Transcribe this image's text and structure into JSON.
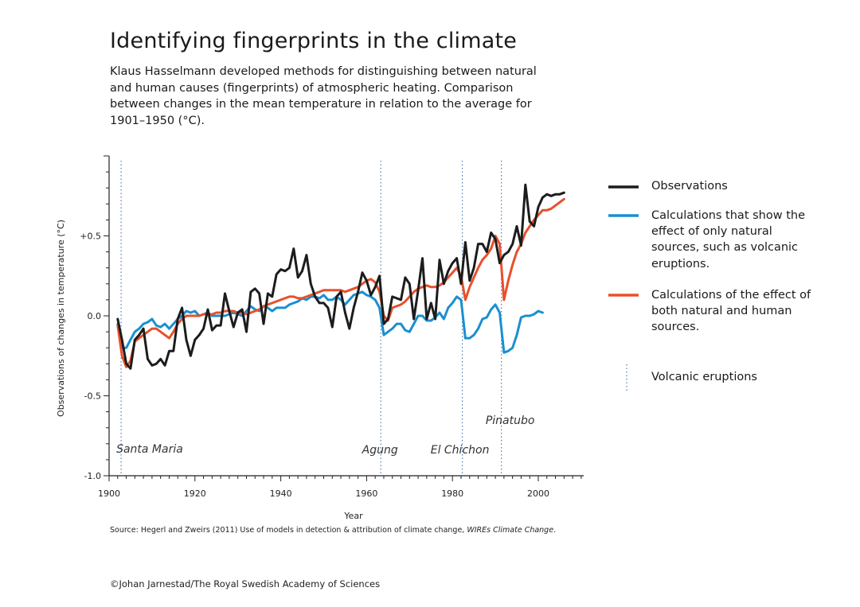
{
  "title": "Identifying fingerprints in the climate",
  "subtitle": "Klaus Hasselmann developed methods for distinguishing between natural and human causes (fingerprints) of atmospheric heating. Comparison between changes in the mean temperature in relation to the average for 1901–1950 (°C).",
  "source": {
    "prefix": "Source: Hegerl and Zweirs (2011) Use of models in detection & attribution of climate change, ",
    "journal": "WIREs Climate Change",
    "suffix": "."
  },
  "credit": "©Johan Jarnestad/The Royal Swedish Academy of Sciences",
  "colors": {
    "observations": "#1c1c1c",
    "natural": "#1a8fd1",
    "combined": "#e8502b",
    "volcano": "#4a7fb5"
  },
  "chart_data": {
    "type": "line",
    "xlabel": "Year",
    "ylabel": "Observations of changes in temperature (°C)",
    "xlim": [
      1900,
      2010
    ],
    "ylim": [
      -1.0,
      1.0
    ],
    "xticks": [
      "1900",
      "1920",
      "1940",
      "1960",
      "1980",
      "2000"
    ],
    "yticks": [
      "-1.0",
      "-0.5",
      "0.0",
      "+0.5"
    ],
    "legend_position": "right",
    "grid": false,
    "series": [
      {
        "name": "Observations",
        "key": "observations",
        "x": [
          1902,
          1903,
          1904,
          1905,
          1906,
          1907,
          1908,
          1909,
          1910,
          1911,
          1912,
          1913,
          1914,
          1915,
          1916,
          1917,
          1918,
          1919,
          1920,
          1921,
          1922,
          1923,
          1924,
          1925,
          1926,
          1927,
          1928,
          1929,
          1930,
          1931,
          1932,
          1933,
          1934,
          1935,
          1936,
          1937,
          1938,
          1939,
          1940,
          1941,
          1942,
          1943,
          1944,
          1945,
          1946,
          1947,
          1948,
          1949,
          1950,
          1951,
          1952,
          1953,
          1954,
          1955,
          1956,
          1957,
          1958,
          1959,
          1960,
          1961,
          1962,
          1963,
          1964,
          1965,
          1966,
          1967,
          1968,
          1969,
          1970,
          1971,
          1972,
          1973,
          1974,
          1975,
          1976,
          1977,
          1978,
          1979,
          1980,
          1981,
          1982,
          1983,
          1984,
          1985,
          1986,
          1987,
          1988,
          1989,
          1990,
          1991,
          1992,
          1993,
          1994,
          1995,
          1996,
          1997,
          1998,
          1999,
          2000,
          2001,
          2002,
          2003,
          2004,
          2005,
          2006
        ],
        "y": [
          -0.02,
          -0.15,
          -0.3,
          -0.33,
          -0.15,
          -0.12,
          -0.08,
          -0.27,
          -0.31,
          -0.3,
          -0.27,
          -0.31,
          -0.22,
          -0.22,
          -0.02,
          0.05,
          -0.15,
          -0.25,
          -0.15,
          -0.12,
          -0.08,
          0.04,
          -0.09,
          -0.06,
          -0.06,
          0.14,
          0.03,
          -0.07,
          0.02,
          0.04,
          -0.1,
          0.15,
          0.17,
          0.14,
          -0.05,
          0.14,
          0.12,
          0.26,
          0.29,
          0.28,
          0.3,
          0.42,
          0.24,
          0.28,
          0.38,
          0.2,
          0.12,
          0.08,
          0.08,
          0.05,
          -0.07,
          0.12,
          0.15,
          0.02,
          -0.08,
          0.05,
          0.15,
          0.27,
          0.22,
          0.13,
          0.18,
          0.25,
          -0.05,
          -0.02,
          0.12,
          0.11,
          0.1,
          0.24,
          0.2,
          -0.02,
          0.16,
          0.36,
          -0.02,
          0.08,
          -0.02,
          0.35,
          0.2,
          0.28,
          0.33,
          0.36,
          0.2,
          0.46,
          0.22,
          0.3,
          0.45,
          0.45,
          0.4,
          0.52,
          0.48,
          0.33,
          0.38,
          0.4,
          0.45,
          0.56,
          0.44,
          0.82,
          0.59,
          0.56,
          0.68,
          0.74,
          0.76,
          0.75,
          0.76,
          0.76,
          0.77
        ]
      },
      {
        "name": "Calculations that show the effect of only natural sources, such as volcanic eruptions.",
        "key": "natural",
        "x": [
          1902,
          1903,
          1904,
          1905,
          1906,
          1907,
          1908,
          1909,
          1910,
          1911,
          1912,
          1913,
          1914,
          1915,
          1916,
          1917,
          1918,
          1919,
          1920,
          1921,
          1922,
          1923,
          1924,
          1925,
          1926,
          1927,
          1928,
          1929,
          1930,
          1931,
          1932,
          1933,
          1934,
          1935,
          1936,
          1937,
          1938,
          1939,
          1940,
          1941,
          1942,
          1943,
          1944,
          1945,
          1946,
          1947,
          1948,
          1949,
          1950,
          1951,
          1952,
          1953,
          1954,
          1955,
          1956,
          1957,
          1958,
          1959,
          1960,
          1961,
          1962,
          1963,
          1964,
          1965,
          1966,
          1967,
          1968,
          1969,
          1970,
          1971,
          1972,
          1973,
          1974,
          1975,
          1976,
          1977,
          1978,
          1979,
          1980,
          1981,
          1982,
          1983,
          1984,
          1985,
          1986,
          1987,
          1988,
          1989,
          1990,
          1991,
          1992,
          1993,
          1994,
          1995,
          1996,
          1997,
          1998,
          1999,
          2000,
          2001
        ],
        "y": [
          -0.05,
          -0.2,
          -0.2,
          -0.15,
          -0.1,
          -0.08,
          -0.05,
          -0.04,
          -0.02,
          -0.06,
          -0.07,
          -0.05,
          -0.08,
          -0.05,
          -0.02,
          0.0,
          0.03,
          0.02,
          0.03,
          0.0,
          0.01,
          0.02,
          0.0,
          0.0,
          0.0,
          0.0,
          0.01,
          0.02,
          0.01,
          0.0,
          0.03,
          0.06,
          0.04,
          0.03,
          0.06,
          0.05,
          0.03,
          0.05,
          0.05,
          0.05,
          0.07,
          0.08,
          0.09,
          0.11,
          0.1,
          0.12,
          0.12,
          0.11,
          0.13,
          0.1,
          0.1,
          0.12,
          0.1,
          0.07,
          0.1,
          0.13,
          0.14,
          0.15,
          0.13,
          0.12,
          0.1,
          0.05,
          -0.12,
          -0.1,
          -0.08,
          -0.05,
          -0.05,
          -0.09,
          -0.1,
          -0.05,
          0.0,
          0.0,
          -0.03,
          -0.03,
          -0.01,
          0.02,
          -0.02,
          0.05,
          0.08,
          0.12,
          0.1,
          -0.14,
          -0.14,
          -0.12,
          -0.08,
          -0.02,
          -0.01,
          0.04,
          0.07,
          0.02,
          -0.23,
          -0.22,
          -0.2,
          -0.12,
          -0.01,
          0.0,
          0.0,
          0.01,
          0.03,
          0.02
        ]
      },
      {
        "name": "Calculations of the effect of both natural and human sources.",
        "key": "combined",
        "x": [
          1902,
          1903,
          1904,
          1905,
          1906,
          1907,
          1908,
          1909,
          1910,
          1911,
          1912,
          1913,
          1914,
          1915,
          1916,
          1917,
          1918,
          1919,
          1920,
          1921,
          1922,
          1923,
          1924,
          1925,
          1926,
          1927,
          1928,
          1929,
          1930,
          1931,
          1932,
          1933,
          1934,
          1935,
          1936,
          1937,
          1938,
          1939,
          1940,
          1941,
          1942,
          1943,
          1944,
          1945,
          1946,
          1947,
          1948,
          1949,
          1950,
          1951,
          1952,
          1953,
          1954,
          1955,
          1956,
          1957,
          1958,
          1959,
          1960,
          1961,
          1962,
          1963,
          1964,
          1965,
          1966,
          1967,
          1968,
          1969,
          1970,
          1971,
          1972,
          1973,
          1974,
          1975,
          1976,
          1977,
          1978,
          1979,
          1980,
          1981,
          1982,
          1983,
          1984,
          1985,
          1986,
          1987,
          1988,
          1989,
          1990,
          1991,
          1992,
          1993,
          1994,
          1995,
          1996,
          1997,
          1998,
          1999,
          2000,
          2001,
          2002,
          2003,
          2004,
          2005,
          2006
        ],
        "y": [
          -0.06,
          -0.25,
          -0.32,
          -0.28,
          -0.16,
          -0.14,
          -0.12,
          -0.1,
          -0.08,
          -0.08,
          -0.1,
          -0.12,
          -0.14,
          -0.1,
          -0.05,
          -0.02,
          0.0,
          0.0,
          0.0,
          0.0,
          0.01,
          0.01,
          0.01,
          0.02,
          0.02,
          0.03,
          0.03,
          0.03,
          0.02,
          0.02,
          0.01,
          0.02,
          0.03,
          0.04,
          0.06,
          0.07,
          0.08,
          0.09,
          0.1,
          0.11,
          0.12,
          0.12,
          0.11,
          0.11,
          0.12,
          0.13,
          0.14,
          0.15,
          0.16,
          0.16,
          0.16,
          0.16,
          0.16,
          0.15,
          0.16,
          0.17,
          0.18,
          0.2,
          0.22,
          0.23,
          0.21,
          0.15,
          0.0,
          -0.03,
          0.05,
          0.06,
          0.07,
          0.09,
          0.12,
          0.15,
          0.17,
          0.18,
          0.19,
          0.18,
          0.18,
          0.19,
          0.21,
          0.24,
          0.27,
          0.3,
          0.25,
          0.1,
          0.18,
          0.24,
          0.3,
          0.35,
          0.38,
          0.42,
          0.5,
          0.45,
          0.1,
          0.22,
          0.32,
          0.4,
          0.45,
          0.52,
          0.56,
          0.6,
          0.63,
          0.66,
          0.66,
          0.67,
          0.69,
          0.71,
          0.73
        ]
      }
    ],
    "volcano_legend": "Volcanic eruptions",
    "eruptions": [
      {
        "name": "Santa Maria",
        "year": 1902.8
      },
      {
        "name": "Agung",
        "year": 1963.3
      },
      {
        "name": "El Chichon",
        "year": 1982.3
      },
      {
        "name": "Pinatubo",
        "year": 1991.4
      }
    ]
  }
}
